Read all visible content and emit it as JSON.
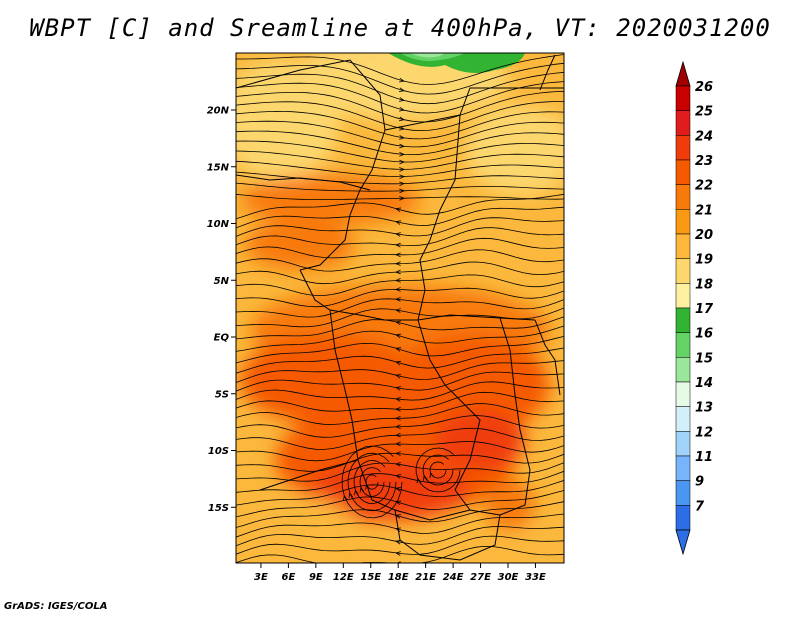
{
  "title": "WBPT [C] and Sreamline at 400hPa, VT: 2020031200",
  "credit": "GrADS: IGES/COLA",
  "map": {
    "lat_labels": [
      {
        "text": "20N",
        "lat": 20
      },
      {
        "text": "15N",
        "lat": 15
      },
      {
        "text": "10N",
        "lat": 10
      },
      {
        "text": "5N",
        "lat": 5
      },
      {
        "text": "EQ",
        "lat": 0
      },
      {
        "text": "5S",
        "lat": -5
      },
      {
        "text": "10S",
        "lat": -10
      },
      {
        "text": "15S",
        "lat": -15
      }
    ],
    "lon_labels": [
      {
        "text": "3E",
        "lon": 3
      },
      {
        "text": "6E",
        "lon": 6
      },
      {
        "text": "9E",
        "lon": 9
      },
      {
        "text": "12E",
        "lon": 12
      },
      {
        "text": "15E",
        "lon": 15
      },
      {
        "text": "18E",
        "lon": 18
      },
      {
        "text": "21E",
        "lon": 21
      },
      {
        "text": "24E",
        "lon": 24
      },
      {
        "text": "27E",
        "lon": 27
      },
      {
        "text": "30E",
        "lon": 30
      },
      {
        "text": "33E",
        "lon": 33
      }
    ]
  },
  "colorbar": {
    "labels": [
      "26",
      "25",
      "24",
      "23",
      "22",
      "21",
      "20",
      "19",
      "18",
      "17",
      "16",
      "15",
      "14",
      "13",
      "12",
      "11",
      "9",
      "7"
    ],
    "colors": [
      "#c80000",
      "#e01c1c",
      "#f03c0a",
      "#f55a00",
      "#f87a0a",
      "#fa9a14",
      "#fbb83c",
      "#fcd76e",
      "#fdf0a0",
      "#32b432",
      "#64d264",
      "#9ae69a",
      "#e6fae6",
      "#d2f0fa",
      "#a0d2fa",
      "#78b4fa",
      "#4b96f0",
      "#2d6ee6"
    ],
    "over_color": "#a00000",
    "under_color": "#2d6ee6"
  }
}
